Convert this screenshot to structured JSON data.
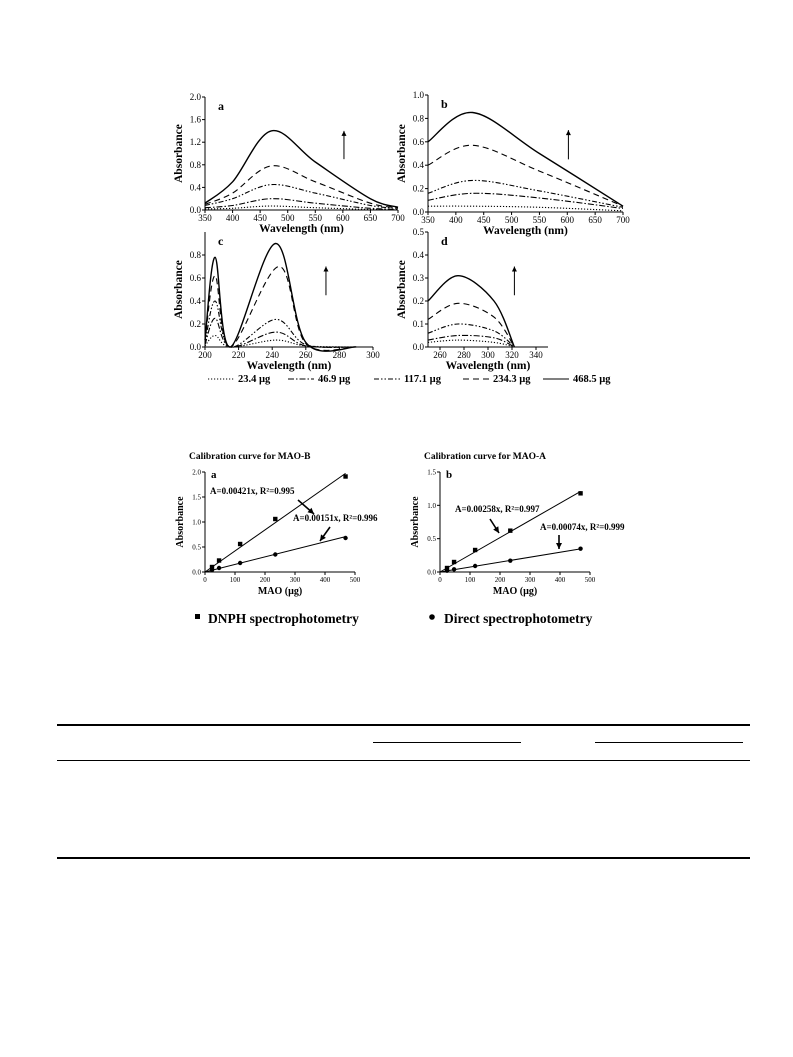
{
  "spectra": {
    "legend": [
      "23.4 µg",
      "46.9 µg",
      "117.1 µg",
      "234.3 µg",
      "468.5 µg"
    ],
    "ylabel": "Absorbance",
    "xlabel": "Wavelength (nm)",
    "panels": [
      {
        "label": "a",
        "xlim": [
          350,
          700
        ],
        "ylim": [
          0,
          2.0
        ],
        "xticks": [
          350,
          400,
          450,
          500,
          550,
          600,
          650,
          700
        ],
        "yticks": [
          0.0,
          0.4,
          0.8,
          1.2,
          1.6,
          2.0
        ],
        "ytick_labels": [
          "0.0",
          "0.4",
          "0.8",
          "1.2",
          "1.6",
          "2.0"
        ]
      },
      {
        "label": "b",
        "xlim": [
          350,
          700
        ],
        "ylim": [
          0,
          1.0
        ],
        "xticks": [
          350,
          400,
          450,
          500,
          550,
          600,
          650,
          700
        ],
        "yticks": [
          0.0,
          0.2,
          0.4,
          0.6,
          0.8,
          1.0
        ],
        "ytick_labels": [
          "0.0",
          "0.2",
          "0.4",
          "0.6",
          "0.8",
          "1.0"
        ]
      },
      {
        "label": "c",
        "xlim": [
          200,
          300
        ],
        "ylim": [
          0,
          1.0
        ],
        "xticks": [
          200,
          220,
          240,
          260,
          280,
          300
        ],
        "yticks": [
          0.0,
          0.2,
          0.4,
          0.6,
          0.8
        ],
        "ytick_labels": [
          "0.0",
          "0.2",
          "0.4",
          "0.6",
          "0.8"
        ]
      },
      {
        "label": "d",
        "xlim": [
          250,
          350
        ],
        "ylim": [
          0,
          0.5
        ],
        "xticks": [
          260,
          280,
          300,
          320,
          340
        ],
        "yticks": [
          0.0,
          0.1,
          0.2,
          0.3,
          0.4,
          0.5
        ],
        "ytick_labels": [
          "0.0",
          "0.1",
          "0.2",
          "0.3",
          "0.4",
          "0.5"
        ]
      }
    ]
  },
  "chart_data": [
    {
      "type": "line",
      "panel": "a",
      "x_unit": "nm",
      "series": [
        {
          "name": "23.4 µg",
          "points": [
            [
              350,
              0.02
            ],
            [
              400,
              0.03
            ],
            [
              470,
              0.07
            ],
            [
              550,
              0.04
            ],
            [
              650,
              0.01
            ],
            [
              700,
              0.0
            ]
          ]
        },
        {
          "name": "46.9 µg",
          "points": [
            [
              350,
              0.04
            ],
            [
              400,
              0.08
            ],
            [
              470,
              0.2
            ],
            [
              550,
              0.12
            ],
            [
              650,
              0.03
            ],
            [
              700,
              0.01
            ]
          ]
        },
        {
          "name": "117.1 µg",
          "points": [
            [
              350,
              0.08
            ],
            [
              400,
              0.2
            ],
            [
              470,
              0.45
            ],
            [
              550,
              0.3
            ],
            [
              650,
              0.08
            ],
            [
              700,
              0.03
            ]
          ]
        },
        {
          "name": "234.3 µg",
          "points": [
            [
              350,
              0.1
            ],
            [
              400,
              0.3
            ],
            [
              470,
              0.78
            ],
            [
              550,
              0.5
            ],
            [
              650,
              0.12
            ],
            [
              700,
              0.04
            ]
          ]
        },
        {
          "name": "468.5 µg",
          "points": [
            [
              350,
              0.12
            ],
            [
              400,
              0.5
            ],
            [
              470,
              1.4
            ],
            [
              550,
              0.85
            ],
            [
              650,
              0.2
            ],
            [
              700,
              0.05
            ]
          ]
        }
      ]
    },
    {
      "type": "line",
      "panel": "b",
      "x_unit": "nm",
      "series": [
        {
          "name": "23.4 µg",
          "points": [
            [
              350,
              0.05
            ],
            [
              430,
              0.05
            ],
            [
              550,
              0.04
            ],
            [
              700,
              0.01
            ]
          ]
        },
        {
          "name": "46.9 µg",
          "points": [
            [
              350,
              0.1
            ],
            [
              430,
              0.16
            ],
            [
              550,
              0.12
            ],
            [
              700,
              0.03
            ]
          ]
        },
        {
          "name": "117.1 µg",
          "points": [
            [
              350,
              0.16
            ],
            [
              430,
              0.27
            ],
            [
              550,
              0.18
            ],
            [
              700,
              0.04
            ]
          ]
        },
        {
          "name": "234.3 µg",
          "points": [
            [
              350,
              0.4
            ],
            [
              430,
              0.57
            ],
            [
              550,
              0.35
            ],
            [
              700,
              0.05
            ]
          ]
        },
        {
          "name": "468.5 µg",
          "points": [
            [
              350,
              0.6
            ],
            [
              430,
              0.85
            ],
            [
              550,
              0.5
            ],
            [
              700,
              0.05
            ]
          ]
        }
      ]
    },
    {
      "type": "line",
      "panel": "c",
      "x_unit": "nm",
      "series": [
        {
          "name": "23.4 µg",
          "points": [
            [
              200,
              0.01
            ],
            [
              206,
              0.1
            ],
            [
              215,
              0.0
            ],
            [
              242,
              0.06
            ],
            [
              260,
              0.01
            ],
            [
              290,
              0.0
            ]
          ]
        },
        {
          "name": "46.9 µg",
          "points": [
            [
              200,
              0.02
            ],
            [
              206,
              0.25
            ],
            [
              215,
              0.0
            ],
            [
              242,
              0.13
            ],
            [
              260,
              0.01
            ],
            [
              290,
              0.0
            ]
          ]
        },
        {
          "name": "117.1 µg",
          "points": [
            [
              200,
              0.03
            ],
            [
              206,
              0.4
            ],
            [
              215,
              0.0
            ],
            [
              242,
              0.24
            ],
            [
              260,
              0.02
            ],
            [
              290,
              0.0
            ]
          ]
        },
        {
          "name": "234.3 µg",
          "points": [
            [
              200,
              0.05
            ],
            [
              206,
              0.62
            ],
            [
              215,
              0.0
            ],
            [
              244,
              0.7
            ],
            [
              260,
              0.03
            ],
            [
              290,
              0.0
            ]
          ]
        },
        {
          "name": "468.5 µg",
          "points": [
            [
              200,
              0.06
            ],
            [
              206,
              0.78
            ],
            [
              215,
              0.0
            ],
            [
              242,
              0.9
            ],
            [
              260,
              0.04
            ],
            [
              290,
              0.0
            ]
          ]
        }
      ]
    },
    {
      "type": "line",
      "panel": "d",
      "x_unit": "nm",
      "series": [
        {
          "name": "23.4 µg",
          "points": [
            [
              250,
              0.02
            ],
            [
              275,
              0.03
            ],
            [
              305,
              0.02
            ],
            [
              322,
              0.0
            ]
          ]
        },
        {
          "name": "46.9 µg",
          "points": [
            [
              250,
              0.03
            ],
            [
              275,
              0.05
            ],
            [
              305,
              0.04
            ],
            [
              322,
              0.0
            ]
          ]
        },
        {
          "name": "117.1 µg",
          "points": [
            [
              250,
              0.06
            ],
            [
              275,
              0.1
            ],
            [
              305,
              0.07
            ],
            [
              322,
              0.0
            ]
          ]
        },
        {
          "name": "234.3 µg",
          "points": [
            [
              250,
              0.12
            ],
            [
              275,
              0.19
            ],
            [
              305,
              0.13
            ],
            [
              322,
              0.0
            ]
          ]
        },
        {
          "name": "468.5 µg",
          "points": [
            [
              250,
              0.2
            ],
            [
              275,
              0.31
            ],
            [
              305,
              0.2
            ],
            [
              322,
              0.0
            ]
          ]
        }
      ]
    },
    {
      "type": "scatter",
      "panel": "a",
      "title": "Calibration curve for MAO-B",
      "xlabel": "MAO (µg)",
      "ylabel": "Absorbance",
      "xlim": [
        0,
        500
      ],
      "ylim": [
        0,
        2.0
      ],
      "xticks": [
        0,
        100,
        200,
        300,
        400,
        500
      ],
      "yticks": [
        0.0,
        0.5,
        1.0,
        1.5,
        2.0
      ],
      "ytick_labels": [
        "0.0",
        "0.5",
        "1.0",
        "1.5",
        "2.0"
      ],
      "series": [
        {
          "name": "DNPH spectrophotometry",
          "marker": "square",
          "fit": "A=0.00421x, R²=0.995",
          "slope": 0.00421,
          "points": [
            [
              23.4,
              0.1
            ],
            [
              46.9,
              0.23
            ],
            [
              117.1,
              0.56
            ],
            [
              234.3,
              1.06
            ],
            [
              468.5,
              1.91
            ]
          ]
        },
        {
          "name": "Direct spectrophotometry",
          "marker": "circle",
          "fit": "A=0.00151x, R²=0.996",
          "slope": 0.00151,
          "points": [
            [
              23.4,
              0.04
            ],
            [
              46.9,
              0.08
            ],
            [
              117.1,
              0.18
            ],
            [
              234.3,
              0.35
            ],
            [
              468.5,
              0.68
            ]
          ]
        }
      ]
    },
    {
      "type": "scatter",
      "panel": "b",
      "title": "Calibration curve for MAO-A",
      "xlabel": "MAO (µg)",
      "ylabel": "Absorbance",
      "xlim": [
        0,
        500
      ],
      "ylim": [
        0,
        1.5
      ],
      "xticks": [
        0,
        100,
        200,
        300,
        400,
        500
      ],
      "yticks": [
        0.0,
        0.5,
        1.0,
        1.5
      ],
      "ytick_labels": [
        "0.0",
        "0.5",
        "1.0",
        "1.5"
      ],
      "series": [
        {
          "name": "DNPH spectrophotometry",
          "marker": "square",
          "fit": "A=0.00258x, R²=0.997",
          "slope": 0.00258,
          "points": [
            [
              23.4,
              0.06
            ],
            [
              46.9,
              0.15
            ],
            [
              117.1,
              0.33
            ],
            [
              234.3,
              0.62
            ],
            [
              468.5,
              1.18
            ]
          ]
        },
        {
          "name": "Direct spectrophotometry",
          "marker": "circle",
          "fit": "A=0.00074x, R²=0.999",
          "slope": 0.00074,
          "points": [
            [
              23.4,
              0.02
            ],
            [
              46.9,
              0.04
            ],
            [
              117.1,
              0.09
            ],
            [
              234.3,
              0.17
            ],
            [
              468.5,
              0.35
            ]
          ]
        }
      ]
    }
  ],
  "calibration_legend": [
    "DNPH spectrophotometry",
    "Direct spectrophotometry"
  ]
}
